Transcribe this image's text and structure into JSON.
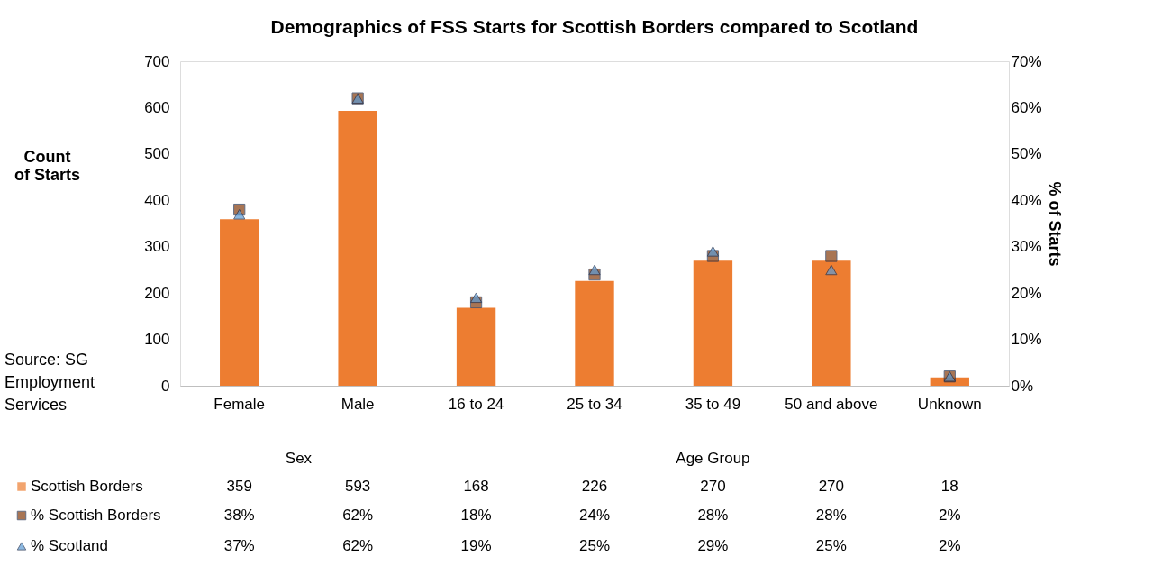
{
  "chart_data": {
    "type": "bar",
    "title": "Demographics of FSS Starts for Scottish Borders compared to Scotland",
    "ylabel": "Count of Starts",
    "y2label": "% of Starts",
    "categories": [
      "Female",
      "Male",
      "16 to 24",
      "25 to 34",
      "35 to 49",
      "50 and above",
      "Unknown"
    ],
    "series": [
      {
        "name": "Scottish Borders",
        "color": "#ed7d31",
        "values": [
          359,
          593,
          168,
          226,
          270,
          270,
          18
        ],
        "value_labels": [
          "359",
          "593",
          "168",
          "226",
          "270",
          "270",
          "18"
        ]
      },
      {
        "name": "% Scottish Borders",
        "type": "scatter",
        "marker": "square",
        "axis": "y2",
        "color": "#843c0c",
        "values": [
          38,
          62,
          18,
          24,
          28,
          28,
          2
        ],
        "value_labels": [
          "38%",
          "62%",
          "18%",
          "24%",
          "28%",
          "28%",
          "2%"
        ]
      },
      {
        "name": "% Scotland",
        "type": "scatter",
        "marker": "triangle",
        "axis": "y2",
        "color": "#5b9bd5",
        "values": [
          37,
          62,
          19,
          25,
          29,
          25,
          2
        ],
        "value_labels": [
          "37%",
          "62%",
          "19%",
          "25%",
          "29%",
          "25%",
          "2%"
        ]
      }
    ],
    "ylim": [
      0,
      700
    ],
    "yticks": [
      0,
      100,
      200,
      300,
      400,
      500,
      600,
      700
    ],
    "y2lim": [
      0,
      70
    ],
    "y2ticks": [
      {
        "value": 0,
        "label": "0%"
      },
      {
        "value": 10,
        "label": "10%"
      },
      {
        "value": 20,
        "label": "20%"
      },
      {
        "value": 30,
        "label": "30%"
      },
      {
        "value": 40,
        "label": "40%"
      },
      {
        "value": 50,
        "label": "50%"
      },
      {
        "value": 60,
        "label": "60%"
      },
      {
        "value": 70,
        "label": "70%"
      }
    ],
    "grid": false,
    "legend": "bottom",
    "annotations": [
      "Sex",
      "Age Group",
      "Source: SG Employment Services"
    ]
  }
}
